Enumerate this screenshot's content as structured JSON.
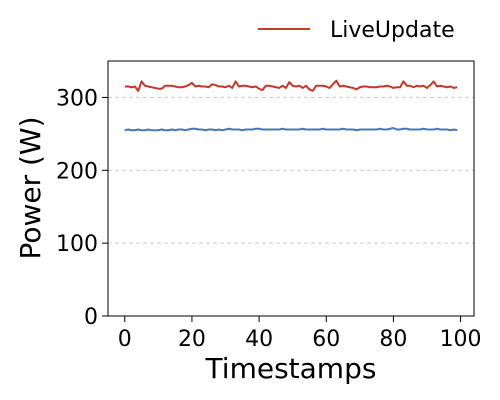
{
  "chart_data": {
    "type": "line",
    "xlabel": "Timestamps",
    "ylabel": "Power (W)",
    "xlim": [
      -5,
      104
    ],
    "ylim": [
      0,
      350
    ],
    "xticks": [
      0,
      20,
      40,
      60,
      80,
      100
    ],
    "yticks": [
      0,
      100,
      200,
      300
    ],
    "grid": "horizontal dashed",
    "legend_position": "top-right, outside plot",
    "series": [
      {
        "name": "LiveUpdate",
        "color": "#c0392b",
        "x": [
          0,
          1,
          2,
          3,
          4,
          5,
          6,
          7,
          8,
          9,
          10,
          11,
          12,
          13,
          14,
          15,
          16,
          17,
          18,
          19,
          20,
          21,
          22,
          23,
          24,
          25,
          26,
          27,
          28,
          29,
          30,
          31,
          32,
          33,
          34,
          35,
          36,
          37,
          38,
          39,
          40,
          41,
          42,
          43,
          44,
          45,
          46,
          47,
          48,
          49,
          50,
          51,
          52,
          53,
          54,
          55,
          56,
          57,
          58,
          59,
          60,
          61,
          62,
          63,
          64,
          65,
          66,
          67,
          68,
          69,
          70,
          71,
          72,
          73,
          74,
          75,
          76,
          77,
          78,
          79,
          80,
          81,
          82,
          83,
          84,
          85,
          86,
          87,
          88,
          89,
          90,
          91,
          92,
          93,
          94,
          95,
          96,
          97,
          98,
          99
        ],
        "values": [
          315,
          315,
          314,
          315,
          309,
          322,
          316,
          315,
          314,
          313,
          312,
          312,
          316,
          316,
          316,
          315,
          314,
          314,
          315,
          317,
          320,
          315,
          316,
          315,
          315,
          314,
          318,
          317,
          315,
          315,
          314,
          316,
          313,
          322,
          315,
          316,
          316,
          315,
          314,
          315,
          312,
          310,
          316,
          316,
          315,
          314,
          313,
          316,
          313,
          321,
          316,
          315,
          316,
          313,
          316,
          311,
          309,
          316,
          316,
          316,
          315,
          313,
          318,
          323,
          315,
          316,
          315,
          314,
          313,
          311,
          314,
          315,
          315,
          314,
          314,
          314,
          315,
          315,
          316,
          315,
          313,
          314,
          314,
          322,
          316,
          316,
          314,
          316,
          315,
          316,
          313,
          317,
          322,
          315,
          316,
          315,
          314,
          315,
          313,
          314
        ]
      },
      {
        "name": "",
        "color": "#4a78b5",
        "x": [
          0,
          1,
          2,
          3,
          4,
          5,
          6,
          7,
          8,
          9,
          10,
          11,
          12,
          13,
          14,
          15,
          16,
          17,
          18,
          19,
          20,
          21,
          22,
          23,
          24,
          25,
          26,
          27,
          28,
          29,
          30,
          31,
          32,
          33,
          34,
          35,
          36,
          37,
          38,
          39,
          40,
          41,
          42,
          43,
          44,
          45,
          46,
          47,
          48,
          49,
          50,
          51,
          52,
          53,
          54,
          55,
          56,
          57,
          58,
          59,
          60,
          61,
          62,
          63,
          64,
          65,
          66,
          67,
          68,
          69,
          70,
          71,
          72,
          73,
          74,
          75,
          76,
          77,
          78,
          79,
          80,
          81,
          82,
          83,
          84,
          85,
          86,
          87,
          88,
          89,
          90,
          91,
          92,
          93,
          94,
          95,
          96,
          97,
          98,
          99
        ],
        "values": [
          255,
          256,
          255,
          255,
          256,
          255,
          255,
          256,
          255,
          255,
          255,
          256,
          255,
          255,
          256,
          255,
          256,
          256,
          255,
          256,
          257,
          257,
          256,
          256,
          255,
          256,
          256,
          255,
          256,
          255,
          256,
          257,
          256,
          256,
          256,
          255,
          256,
          256,
          256,
          257,
          257,
          256,
          256,
          256,
          256,
          256,
          256,
          257,
          256,
          256,
          256,
          256,
          256,
          257,
          256,
          256,
          256,
          256,
          256,
          257,
          256,
          256,
          256,
          256,
          256,
          257,
          256,
          256,
          256,
          255,
          256,
          256,
          256,
          256,
          256,
          256,
          257,
          256,
          256,
          257,
          258,
          256,
          256,
          257,
          257,
          256,
          256,
          256,
          256,
          257,
          256,
          256,
          256,
          257,
          256,
          256,
          256,
          255,
          256,
          255
        ]
      }
    ]
  }
}
